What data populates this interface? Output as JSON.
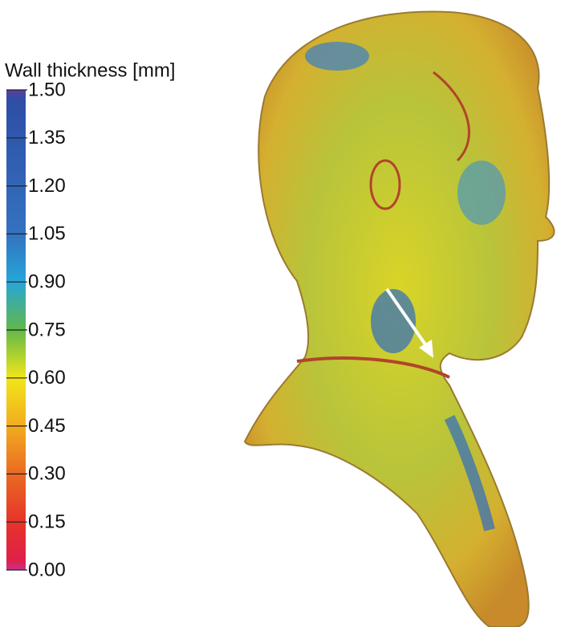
{
  "colorbar": {
    "title": "Wall thickness [mm]",
    "lim": [
      0,
      1.5
    ],
    "ticks": [
      {
        "value": 1.5,
        "label": "1.50"
      },
      {
        "value": 1.35,
        "label": "1.35"
      },
      {
        "value": 1.2,
        "label": "1.20"
      },
      {
        "value": 1.05,
        "label": "1.05"
      },
      {
        "value": 0.9,
        "label": "0.90"
      },
      {
        "value": 0.75,
        "label": "0.75"
      },
      {
        "value": 0.6,
        "label": "0.60"
      },
      {
        "value": 0.45,
        "label": "0.45"
      },
      {
        "value": 0.3,
        "label": "0.30"
      },
      {
        "value": 0.15,
        "label": "0.15"
      },
      {
        "value": 0,
        "label": "0.00"
      }
    ]
  }
}
